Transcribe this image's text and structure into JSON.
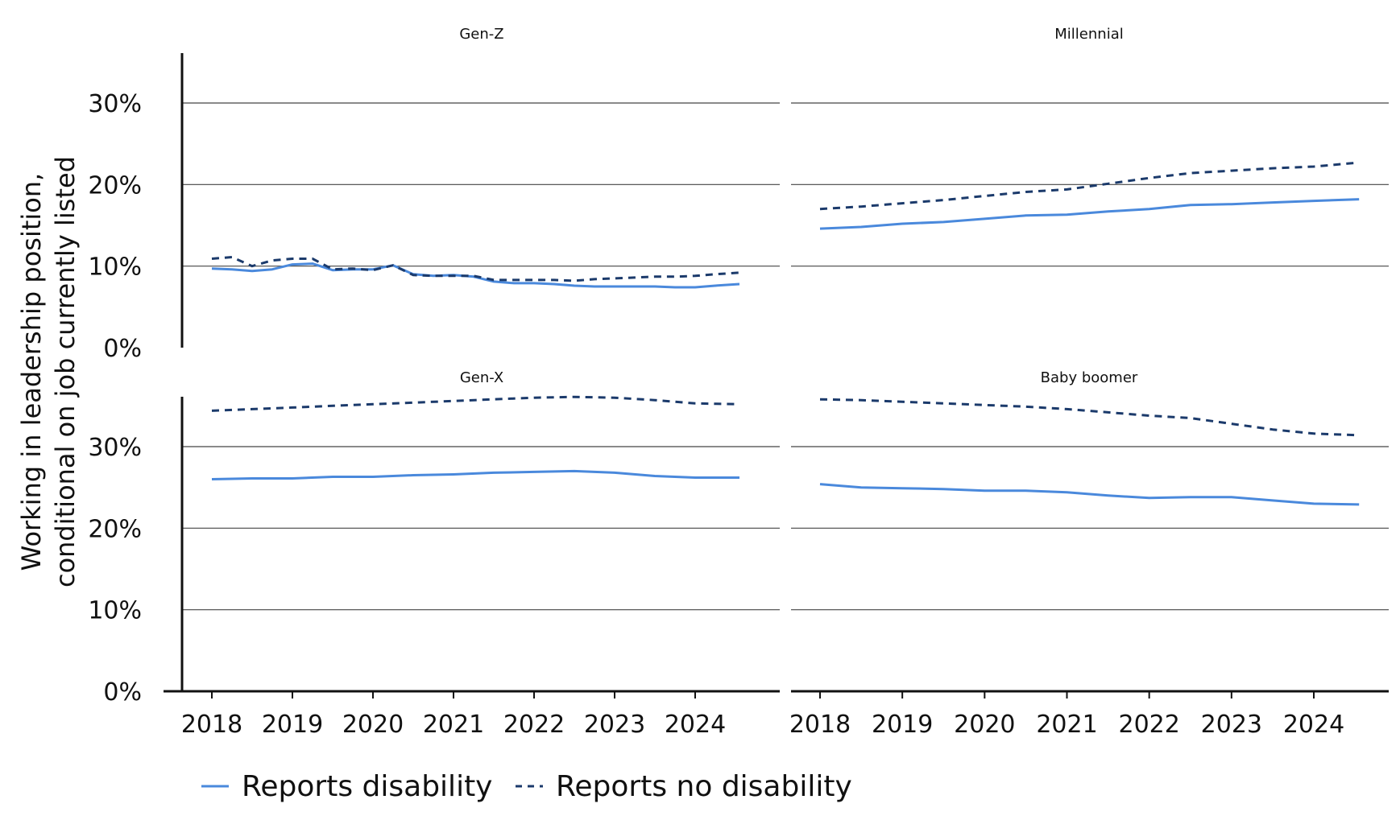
{
  "chart_data": {
    "type": "line",
    "ylabel_lines": [
      "Working in leadership position,",
      "conditional on job currently listed"
    ],
    "ylim": [
      0,
      36
    ],
    "yticks": [
      0,
      10,
      20,
      30
    ],
    "ytick_labels": [
      "0%",
      "10%",
      "20%",
      "30%"
    ],
    "xlim": [
      2017.65,
      2024.8
    ],
    "xticks": [
      2018,
      2019,
      2020,
      2021,
      2022,
      2023,
      2024
    ],
    "xtick_labels": [
      "2018",
      "2019",
      "2020",
      "2021",
      "2022",
      "2023",
      "2024"
    ],
    "grid": true,
    "legend_position": "bottom",
    "legend": [
      {
        "label": "Reports disability",
        "style": "solid",
        "color": "#4a89dc"
      },
      {
        "label": "Reports no disability",
        "style": "dashed",
        "color": "#1b3a6b"
      }
    ],
    "panels": [
      {
        "title": "Gen-Z",
        "series": [
          {
            "name": "Reports disability",
            "points": [
              [
                2018.0,
                9.7
              ],
              [
                2018.25,
                9.6
              ],
              [
                2018.5,
                9.4
              ],
              [
                2018.75,
                9.6
              ],
              [
                2019.0,
                10.2
              ],
              [
                2019.25,
                10.3
              ],
              [
                2019.5,
                9.5
              ],
              [
                2019.75,
                9.6
              ],
              [
                2020.0,
                9.6
              ],
              [
                2020.25,
                10.1
              ],
              [
                2020.5,
                9.0
              ],
              [
                2020.75,
                8.8
              ],
              [
                2021.0,
                8.9
              ],
              [
                2021.25,
                8.7
              ],
              [
                2021.5,
                8.1
              ],
              [
                2021.75,
                7.9
              ],
              [
                2022.0,
                7.9
              ],
              [
                2022.25,
                7.8
              ],
              [
                2022.5,
                7.6
              ],
              [
                2022.75,
                7.5
              ],
              [
                2023.0,
                7.5
              ],
              [
                2023.25,
                7.5
              ],
              [
                2023.5,
                7.5
              ],
              [
                2023.75,
                7.4
              ],
              [
                2024.0,
                7.4
              ],
              [
                2024.25,
                7.6
              ],
              [
                2024.55,
                7.8
              ]
            ]
          },
          {
            "name": "Reports no disability",
            "points": [
              [
                2018.0,
                10.9
              ],
              [
                2018.25,
                11.1
              ],
              [
                2018.5,
                10.0
              ],
              [
                2018.75,
                10.7
              ],
              [
                2019.0,
                10.9
              ],
              [
                2019.25,
                10.9
              ],
              [
                2019.5,
                9.6
              ],
              [
                2019.75,
                9.7
              ],
              [
                2020.0,
                9.5
              ],
              [
                2020.25,
                10.1
              ],
              [
                2020.5,
                8.9
              ],
              [
                2020.75,
                8.8
              ],
              [
                2021.0,
                8.8
              ],
              [
                2021.25,
                8.8
              ],
              [
                2021.5,
                8.3
              ],
              [
                2021.75,
                8.3
              ],
              [
                2022.0,
                8.3
              ],
              [
                2022.25,
                8.3
              ],
              [
                2022.5,
                8.2
              ],
              [
                2022.75,
                8.4
              ],
              [
                2023.0,
                8.5
              ],
              [
                2023.25,
                8.6
              ],
              [
                2023.5,
                8.7
              ],
              [
                2023.75,
                8.7
              ],
              [
                2024.0,
                8.8
              ],
              [
                2024.25,
                9.0
              ],
              [
                2024.55,
                9.2
              ]
            ]
          }
        ]
      },
      {
        "title": "Millennial",
        "series": [
          {
            "name": "Reports disability",
            "points": [
              [
                2018.0,
                14.6
              ],
              [
                2018.5,
                14.8
              ],
              [
                2019.0,
                15.2
              ],
              [
                2019.5,
                15.4
              ],
              [
                2020.0,
                15.8
              ],
              [
                2020.5,
                16.2
              ],
              [
                2021.0,
                16.3
              ],
              [
                2021.5,
                16.7
              ],
              [
                2022.0,
                17.0
              ],
              [
                2022.5,
                17.5
              ],
              [
                2023.0,
                17.6
              ],
              [
                2023.5,
                17.8
              ],
              [
                2024.0,
                18.0
              ],
              [
                2024.55,
                18.2
              ]
            ]
          },
          {
            "name": "Reports no disability",
            "points": [
              [
                2018.0,
                17.0
              ],
              [
                2018.5,
                17.3
              ],
              [
                2019.0,
                17.7
              ],
              [
                2019.5,
                18.1
              ],
              [
                2020.0,
                18.6
              ],
              [
                2020.5,
                19.1
              ],
              [
                2021.0,
                19.4
              ],
              [
                2021.5,
                20.1
              ],
              [
                2022.0,
                20.8
              ],
              [
                2022.5,
                21.4
              ],
              [
                2023.0,
                21.7
              ],
              [
                2023.5,
                22.0
              ],
              [
                2024.0,
                22.2
              ],
              [
                2024.55,
                22.7
              ]
            ]
          }
        ]
      },
      {
        "title": "Gen-X",
        "series": [
          {
            "name": "Reports disability",
            "points": [
              [
                2018.0,
                26.0
              ],
              [
                2018.5,
                26.1
              ],
              [
                2019.0,
                26.1
              ],
              [
                2019.5,
                26.3
              ],
              [
                2020.0,
                26.3
              ],
              [
                2020.5,
                26.5
              ],
              [
                2021.0,
                26.6
              ],
              [
                2021.5,
                26.8
              ],
              [
                2022.0,
                26.9
              ],
              [
                2022.5,
                27.0
              ],
              [
                2023.0,
                26.8
              ],
              [
                2023.5,
                26.4
              ],
              [
                2024.0,
                26.2
              ],
              [
                2024.55,
                26.2
              ]
            ]
          },
          {
            "name": "Reports no disability",
            "points": [
              [
                2018.0,
                34.4
              ],
              [
                2018.5,
                34.6
              ],
              [
                2019.0,
                34.8
              ],
              [
                2019.5,
                35.0
              ],
              [
                2020.0,
                35.2
              ],
              [
                2020.5,
                35.4
              ],
              [
                2021.0,
                35.6
              ],
              [
                2021.5,
                35.8
              ],
              [
                2022.0,
                36.0
              ],
              [
                2022.5,
                36.1
              ],
              [
                2023.0,
                36.0
              ],
              [
                2023.5,
                35.7
              ],
              [
                2024.0,
                35.3
              ],
              [
                2024.55,
                35.2
              ]
            ]
          }
        ]
      },
      {
        "title": "Baby boomer",
        "series": [
          {
            "name": "Reports disability",
            "points": [
              [
                2018.0,
                25.4
              ],
              [
                2018.5,
                25.0
              ],
              [
                2019.0,
                24.9
              ],
              [
                2019.5,
                24.8
              ],
              [
                2020.0,
                24.6
              ],
              [
                2020.5,
                24.6
              ],
              [
                2021.0,
                24.4
              ],
              [
                2021.5,
                24.0
              ],
              [
                2022.0,
                23.7
              ],
              [
                2022.5,
                23.8
              ],
              [
                2023.0,
                23.8
              ],
              [
                2023.5,
                23.4
              ],
              [
                2024.0,
                23.0
              ],
              [
                2024.55,
                22.9
              ]
            ]
          },
          {
            "name": "Reports no disability",
            "points": [
              [
                2018.0,
                35.8
              ],
              [
                2018.5,
                35.7
              ],
              [
                2019.0,
                35.5
              ],
              [
                2019.5,
                35.3
              ],
              [
                2020.0,
                35.1
              ],
              [
                2020.5,
                34.9
              ],
              [
                2021.0,
                34.6
              ],
              [
                2021.5,
                34.2
              ],
              [
                2022.0,
                33.8
              ],
              [
                2022.5,
                33.5
              ],
              [
                2023.0,
                32.8
              ],
              [
                2023.5,
                32.1
              ],
              [
                2024.0,
                31.6
              ],
              [
                2024.55,
                31.4
              ]
            ]
          }
        ]
      }
    ]
  }
}
